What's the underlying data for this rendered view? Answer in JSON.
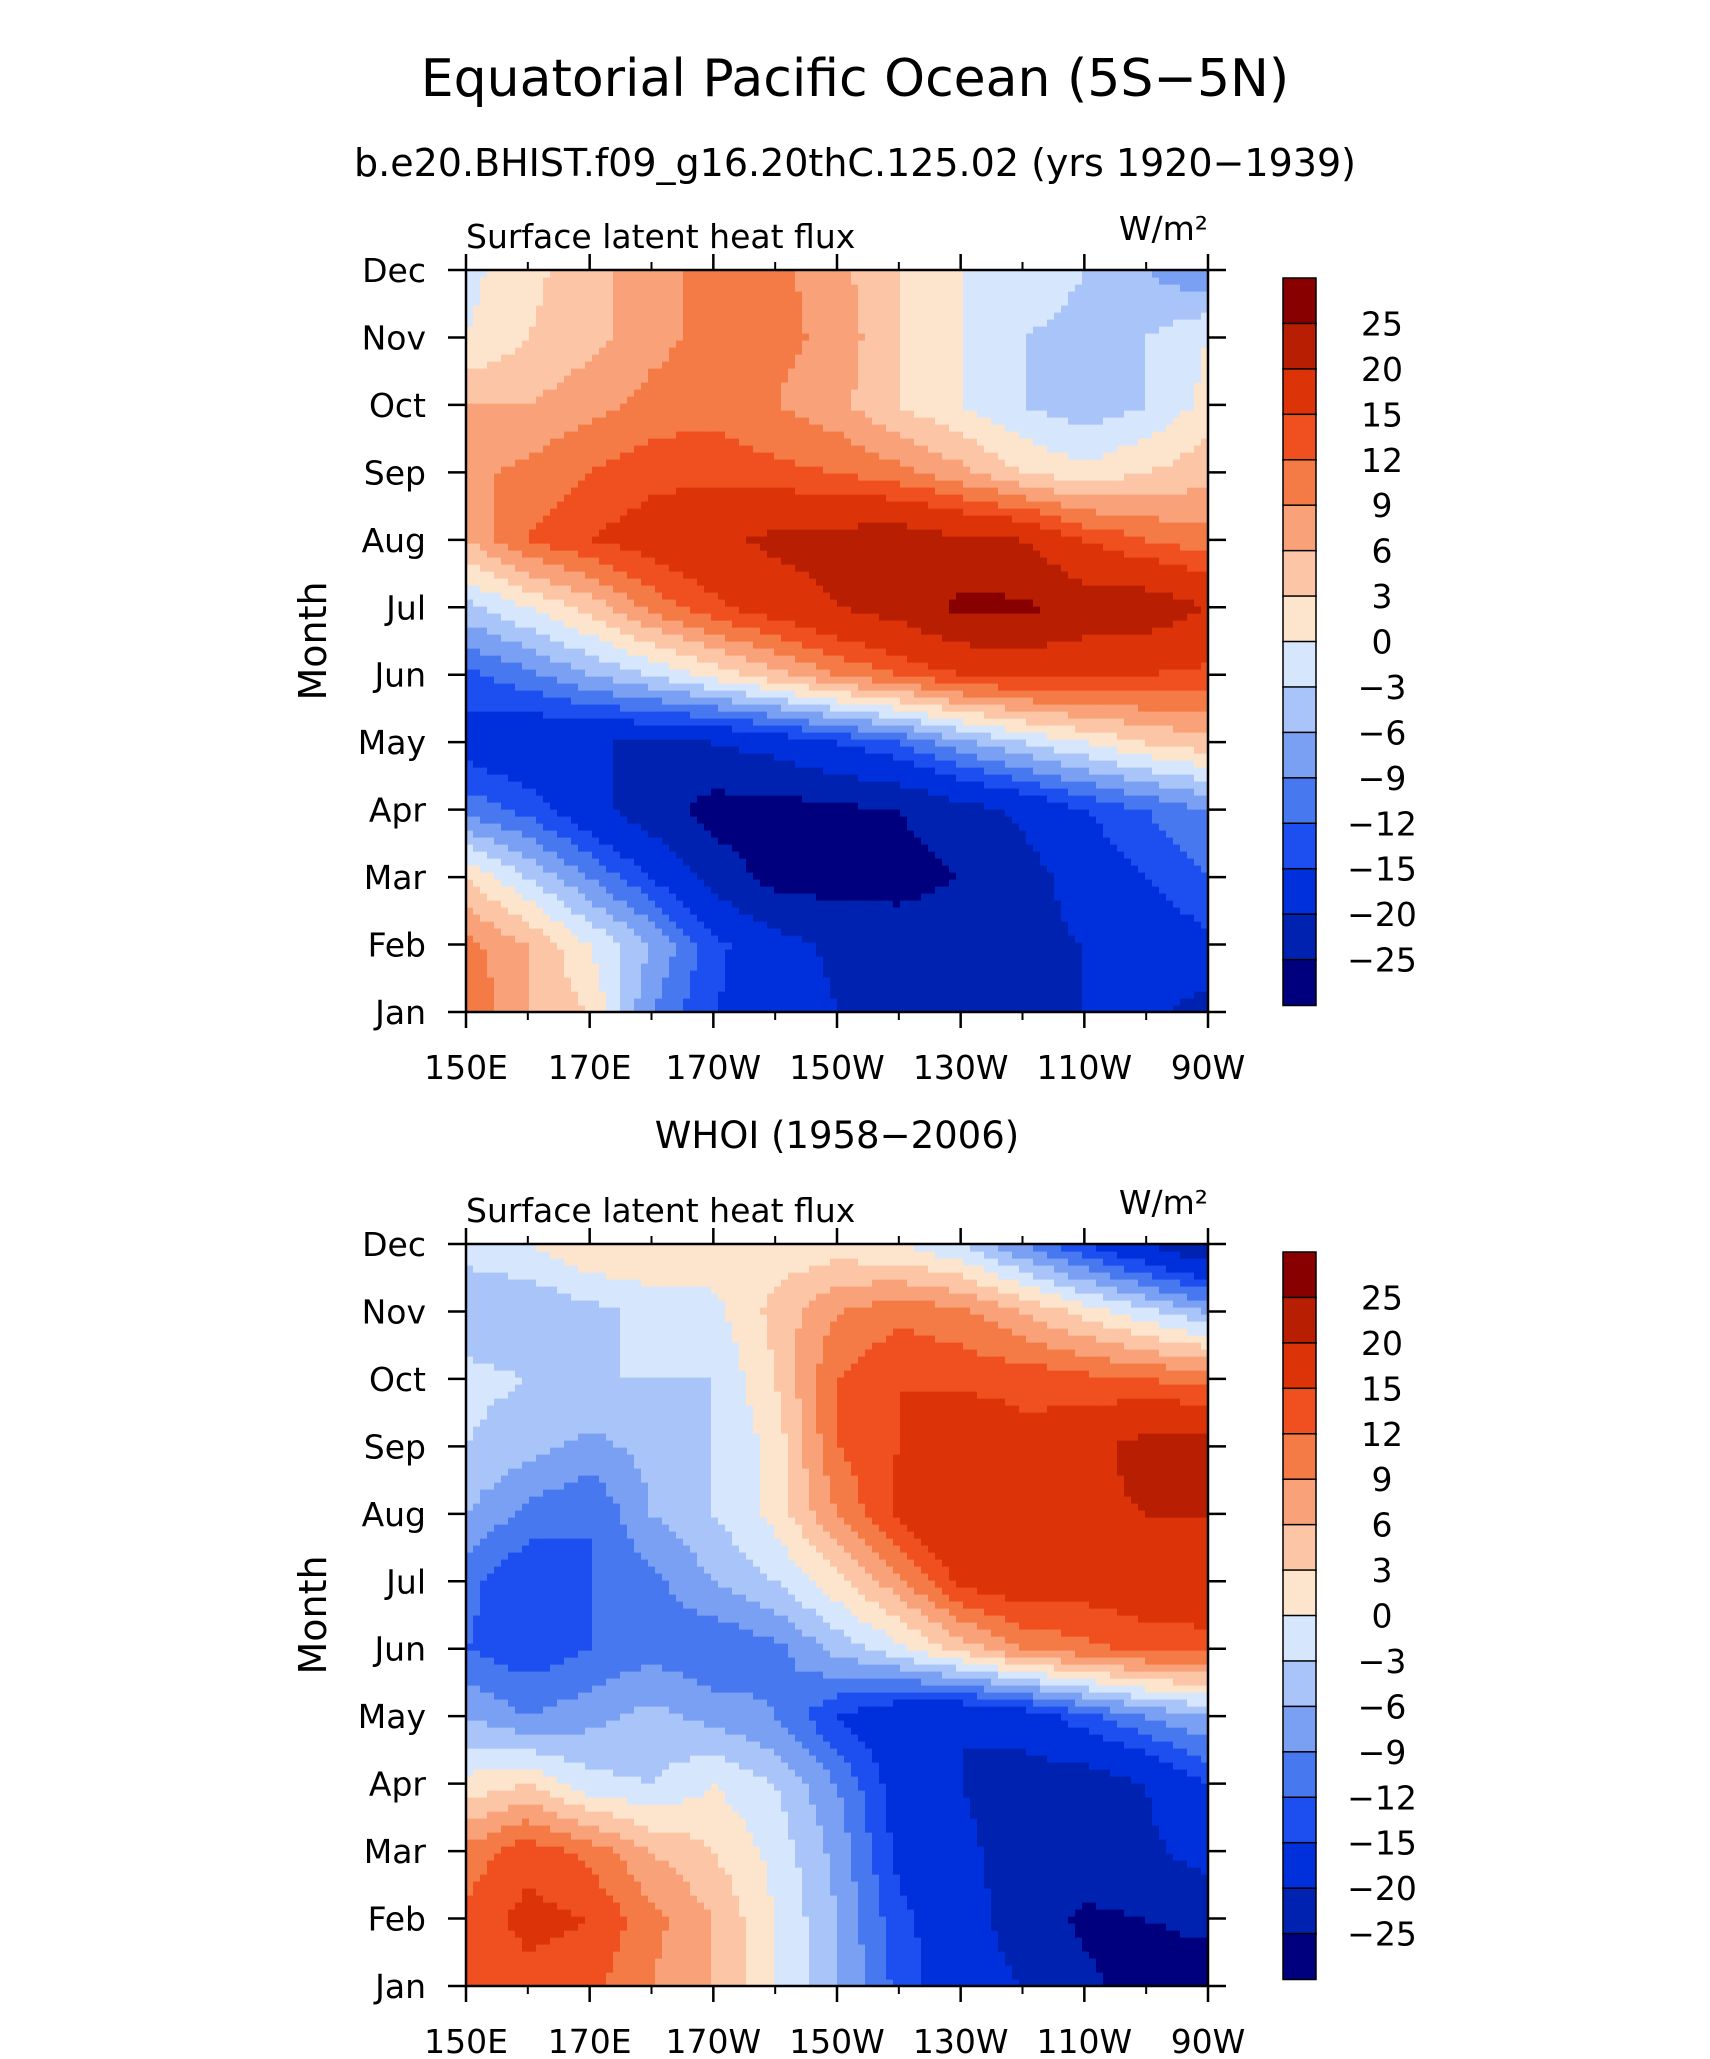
{
  "figure": {
    "title": "Equatorial Pacific Ocean (5S−5N)",
    "subtitle": "b.e20.BHIST.f09_g16.20thC.125.02 (yrs 1920−1939)"
  },
  "levels": [
    -25,
    -20,
    -15,
    -12,
    -9,
    -6,
    -3,
    0,
    3,
    6,
    9,
    12,
    15,
    20,
    25
  ],
  "level_labels": [
    "25",
    "20",
    "15",
    "12",
    "9",
    "6",
    "3",
    "0",
    "−3",
    "−6",
    "−9",
    "−12",
    "−15",
    "−20",
    "−25"
  ],
  "colors": [
    "#00007f",
    "#0022b0",
    "#0030dc",
    "#1d4ef0",
    "#4878f0",
    "#7aa0f4",
    "#a8c4f8",
    "#d6e6fc",
    "#fde4cc",
    "#fcc6a6",
    "#f9a27a",
    "#f47a46",
    "#f05020",
    "#dc3408",
    "#b81e02",
    "#880000"
  ],
  "chart_data": [
    {
      "type": "heatmap",
      "panel_title": "",
      "variable_label": "Surface latent heat flux",
      "units": "W/m²",
      "ylabel": "Month",
      "xlabel": "",
      "x_ticks": [
        "150E",
        "170E",
        "170W",
        "150W",
        "130W",
        "110W",
        "90W"
      ],
      "x_range": [
        150,
        270
      ],
      "y_ticks": [
        "Jan",
        "Feb",
        "Mar",
        "Apr",
        "May",
        "Jun",
        "Jul",
        "Aug",
        "Sep",
        "Oct",
        "Nov",
        "Dec"
      ],
      "x": [
        150,
        160,
        170,
        180,
        190,
        200,
        210,
        220,
        230,
        240,
        250,
        260,
        270
      ],
      "y": [
        "Jan",
        "Feb",
        "Mar",
        "Apr",
        "May",
        "Jun",
        "Jul",
        "Aug",
        "Sep",
        "Oct",
        "Nov",
        "Dec"
      ],
      "z": [
        [
          12,
          6,
          3,
          -9,
          -15,
          -17,
          -20,
          -22,
          -21,
          -21,
          -20,
          -19,
          -22
        ],
        [
          10,
          6,
          0,
          -6,
          -14,
          -18,
          -21,
          -22,
          -21,
          -21,
          -20,
          -18,
          -16
        ],
        [
          3,
          -3,
          -9,
          -15,
          -22,
          -27,
          -27,
          -27,
          -25,
          -22,
          -18,
          -15,
          -12
        ],
        [
          -10,
          -13,
          -18,
          -23,
          -27,
          -27,
          -26,
          -25,
          -22,
          -19,
          -15,
          -12,
          -9
        ],
        [
          -17,
          -19,
          -20,
          -20,
          -20,
          -18,
          -15,
          -12,
          -7,
          -3,
          0,
          3,
          5
        ],
        [
          -13,
          -10,
          -6,
          -3,
          1,
          5,
          9,
          12,
          15,
          16,
          16,
          15,
          14
        ],
        [
          -4,
          0,
          4,
          10,
          14,
          17,
          20,
          22,
          26,
          26,
          23,
          23,
          20
        ],
        [
          6,
          12,
          15,
          17,
          19,
          21,
          22,
          23,
          21,
          20,
          15,
          12,
          10
        ],
        [
          8,
          10,
          12,
          14,
          14,
          13,
          12,
          10,
          7,
          3,
          1,
          3,
          5
        ],
        [
          6,
          6,
          8,
          10,
          11,
          9,
          7,
          3,
          0,
          -3,
          -5,
          -3,
          1
        ],
        [
          0,
          3,
          5,
          8,
          10,
          10,
          8,
          3,
          0,
          -3,
          -4,
          -3,
          0
        ],
        [
          -1,
          2,
          5,
          8,
          10,
          10,
          7,
          3,
          0,
          -1,
          -3,
          -6,
          -9
        ]
      ]
    },
    {
      "type": "heatmap",
      "panel_title": "WHOI (1958−2006)",
      "variable_label": "Surface latent heat flux",
      "units": "W/m²",
      "ylabel": "Month",
      "xlabel": "",
      "x_ticks": [
        "150E",
        "170E",
        "170W",
        "150W",
        "130W",
        "110W",
        "90W"
      ],
      "x_range": [
        150,
        270
      ],
      "y_ticks": [
        "Jan",
        "Feb",
        "Mar",
        "Apr",
        "May",
        "Jun",
        "Jul",
        "Aug",
        "Sep",
        "Oct",
        "Nov",
        "Dec"
      ],
      "x": [
        150,
        160,
        170,
        180,
        190,
        200,
        210,
        220,
        230,
        240,
        250,
        260,
        270
      ],
      "y": [
        "Jan",
        "Feb",
        "Mar",
        "Apr",
        "May",
        "Jun",
        "Jul",
        "Aug",
        "Sep",
        "Oct",
        "Nov",
        "Dec"
      ],
      "z": [
        [
          12,
          14,
          13,
          9,
          6,
          0,
          -6,
          -13,
          -18,
          -20,
          -24,
          -27,
          -27
        ],
        [
          13,
          16,
          15,
          10,
          6,
          0,
          -6,
          -14,
          -18,
          -22,
          -26,
          -25,
          -24
        ],
        [
          10,
          14,
          11,
          6,
          3,
          -1,
          -7,
          -16,
          -19,
          -22,
          -22,
          -21,
          -18
        ],
        [
          1,
          3,
          -2,
          -3,
          0,
          -3,
          -9,
          -17,
          -20,
          -22,
          -23,
          -20,
          -15
        ],
        [
          -6,
          -9,
          -7,
          -5,
          -7,
          -9,
          -15,
          -19,
          -20,
          -18,
          -13,
          -9,
          -6
        ],
        [
          -12,
          -14,
          -12,
          -10,
          -12,
          -10,
          -5,
          -1,
          4,
          9,
          11,
          13,
          13
        ],
        [
          -11,
          -15,
          -12,
          -10,
          -6,
          -3,
          2,
          8,
          16,
          18,
          17,
          18,
          19
        ],
        [
          -6,
          -10,
          -12,
          -6,
          -3,
          1,
          9,
          16,
          20,
          18,
          19,
          20,
          20
        ],
        [
          -3,
          -5,
          -7,
          -5,
          -3,
          1,
          12,
          15,
          19,
          16,
          18,
          22,
          22
        ],
        [
          -2,
          -3,
          -3,
          -3,
          -3,
          3,
          12,
          15,
          14,
          14,
          13,
          12,
          11
        ],
        [
          -5,
          -6,
          -4,
          -2,
          -1,
          4,
          9,
          11,
          10,
          6,
          2,
          -2,
          -6
        ],
        [
          -2,
          0,
          3,
          3,
          2,
          1,
          1,
          0,
          -3,
          -9,
          -15,
          -20,
          -25
        ]
      ]
    }
  ]
}
